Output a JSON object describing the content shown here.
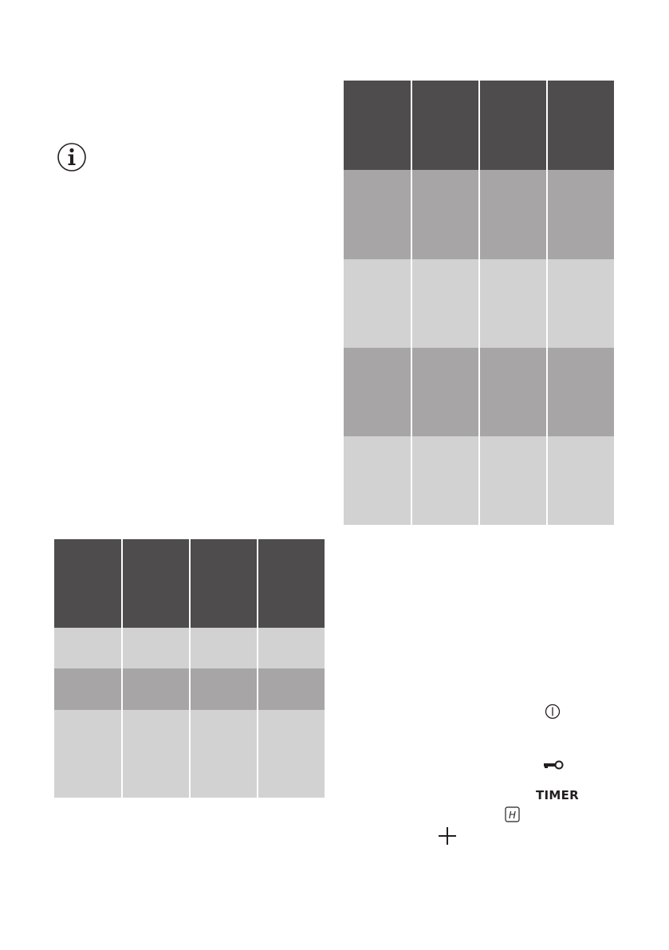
{
  "colors": {
    "dark": "#4e4c4d",
    "mid": "#a7a5a6",
    "light": "#d2d2d2",
    "ink": "#231f20"
  },
  "tables": [
    {
      "name": "left-table",
      "columns": 4,
      "row_shades": [
        "dark",
        "light",
        "mid",
        "light"
      ]
    },
    {
      "name": "right-table",
      "columns": 4,
      "row_shades": [
        "dark",
        "mid",
        "light",
        "mid",
        "light"
      ]
    }
  ],
  "icons": [
    "info-icon",
    "power-icon",
    "key-lock-icon",
    "h-indicator-icon",
    "plus-icon"
  ],
  "controls": {
    "timer_label": "TIMER",
    "h_label": "H"
  }
}
